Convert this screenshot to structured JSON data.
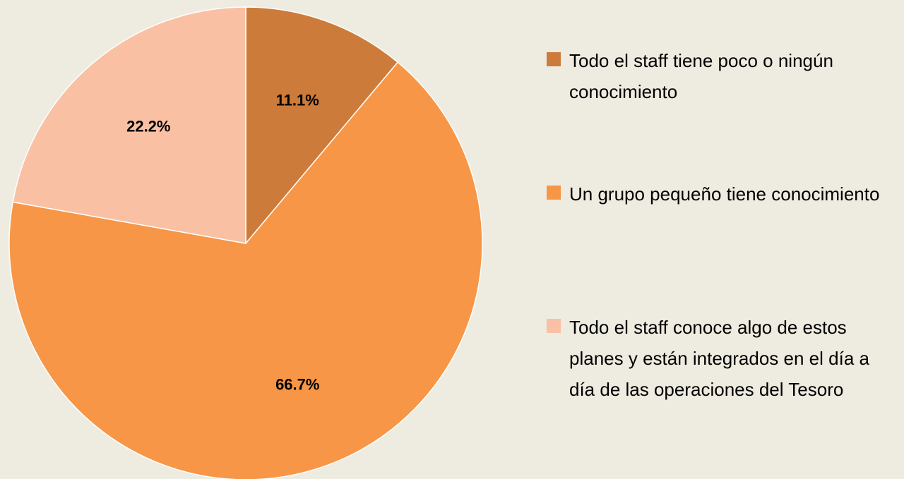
{
  "chart_data": {
    "type": "pie",
    "categories": [
      "Todo el staff tiene poco o ningún conocimiento",
      "Un grupo pequeño tiene conocimiento",
      "Todo el staff conoce algo de estos planes y están integrados en el día a día de las operaciones del Tesoro"
    ],
    "values": [
      11.1,
      66.7,
      22.2
    ],
    "value_labels": [
      "11.1%",
      "66.7%",
      "22.2%"
    ],
    "colors": [
      "#cd7b3a",
      "#f79646",
      "#fac0a3"
    ],
    "legend": "right"
  }
}
